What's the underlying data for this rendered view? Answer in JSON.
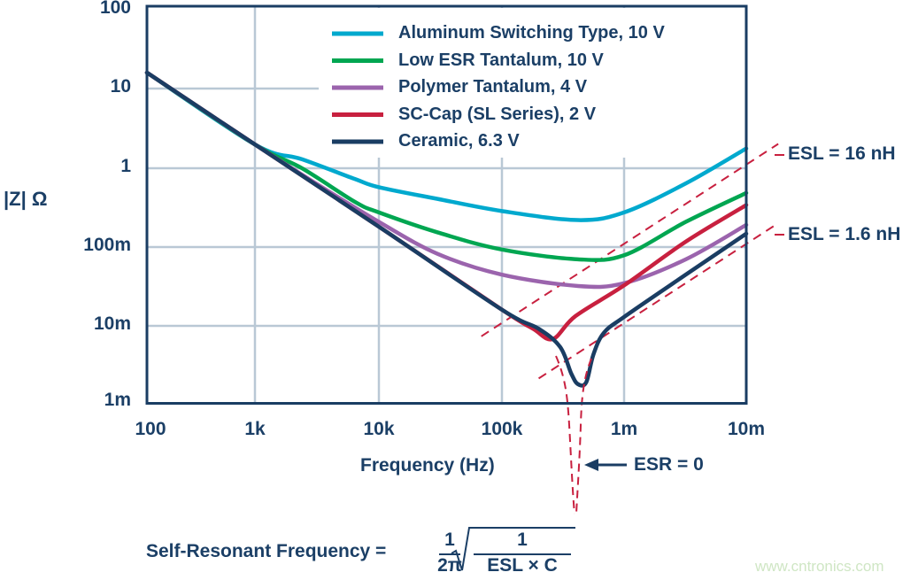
{
  "chart_data": {
    "type": "line",
    "xlabel": "Frequency (Hz)",
    "ylabel": "|Z| Ω",
    "x_scale": "log",
    "y_scale": "log",
    "xlim": [
      100,
      10000000
    ],
    "ylim": [
      0.001,
      100
    ],
    "grid": true,
    "legend_position": "top-right",
    "x_ticks": [
      "100",
      "1k",
      "10k",
      "100k",
      "1m",
      "10m"
    ],
    "y_ticks": [
      "100",
      "10",
      "1",
      "100m",
      "10m",
      "1m"
    ],
    "series": [
      {
        "name": "Aluminum Switching Type, 10 V",
        "color": "#00a9ce",
        "points": [
          [
            100,
            14.5
          ],
          [
            1000,
            1.8
          ],
          [
            2400,
            1.17
          ],
          [
            6400,
            0.66
          ],
          [
            10000,
            0.52
          ],
          [
            30000,
            0.37
          ],
          [
            100000,
            0.26
          ],
          [
            420000,
            0.2
          ],
          [
            1000000,
            0.25
          ],
          [
            3200000,
            0.58
          ],
          [
            10000000,
            1.6
          ]
        ]
      },
      {
        "name": "Low ESR Tantalum, 10 V",
        "color": "#00a651",
        "points": [
          [
            100,
            14.5
          ],
          [
            1000,
            1.8
          ],
          [
            2400,
            0.9
          ],
          [
            6400,
            0.34
          ],
          [
            10000,
            0.25
          ],
          [
            30000,
            0.14
          ],
          [
            100000,
            0.085
          ],
          [
            420000,
            0.064
          ],
          [
            1000000,
            0.072
          ],
          [
            3200000,
            0.19
          ],
          [
            10000000,
            0.44
          ]
        ]
      },
      {
        "name": "Polymer Tantalum, 4 V",
        "color": "#9b64ad",
        "points": [
          [
            100,
            14.5
          ],
          [
            1000,
            1.8
          ],
          [
            3000,
            0.6
          ],
          [
            10000,
            0.19
          ],
          [
            30000,
            0.075
          ],
          [
            100000,
            0.041
          ],
          [
            420000,
            0.0295
          ],
          [
            1000000,
            0.032
          ],
          [
            3200000,
            0.064
          ],
          [
            10000000,
            0.174
          ]
        ]
      },
      {
        "name": "SC-Cap (SL Series), 2 V",
        "color": "#c8203f",
        "points": [
          [
            100,
            14.5
          ],
          [
            1000,
            1.8
          ],
          [
            10000,
            0.165
          ],
          [
            100000,
            0.0148
          ],
          [
            180000,
            0.0085
          ],
          [
            260000,
            0.0063
          ],
          [
            400000,
            0.0123
          ],
          [
            1000000,
            0.03
          ],
          [
            3200000,
            0.107
          ],
          [
            10000000,
            0.31
          ]
        ]
      },
      {
        "name": "Ceramic, 6.3 V",
        "color": "#1a3d63",
        "points": [
          [
            100,
            14.5
          ],
          [
            1000,
            1.8
          ],
          [
            10000,
            0.165
          ],
          [
            100000,
            0.0148
          ],
          [
            200000,
            0.0085
          ],
          [
            300000,
            0.005
          ],
          [
            370000,
            0.0023
          ],
          [
            420000,
            0.0017
          ],
          [
            490000,
            0.0018
          ],
          [
            560000,
            0.004
          ],
          [
            680000,
            0.0075
          ],
          [
            1000000,
            0.012
          ],
          [
            3200000,
            0.041
          ],
          [
            10000000,
            0.135
          ]
        ]
      }
    ],
    "annotations": {
      "esl_lines": [
        {
          "label": "ESL = 16 nH",
          "inductance_h": 1.6e-08,
          "f_start": 68000
        },
        {
          "label": "ESL = 1.6 nH",
          "inductance_h": 1.6e-09,
          "f_start": 200000
        }
      ],
      "esr_label": "ESR = 0",
      "formula": {
        "lhs": "Self-Resonant Frequency =",
        "num": "1",
        "den": "2π",
        "root_num": "1",
        "root_den": "ESL × C"
      },
      "color": "#c8203f"
    }
  },
  "watermark": "www.cntronics.com"
}
